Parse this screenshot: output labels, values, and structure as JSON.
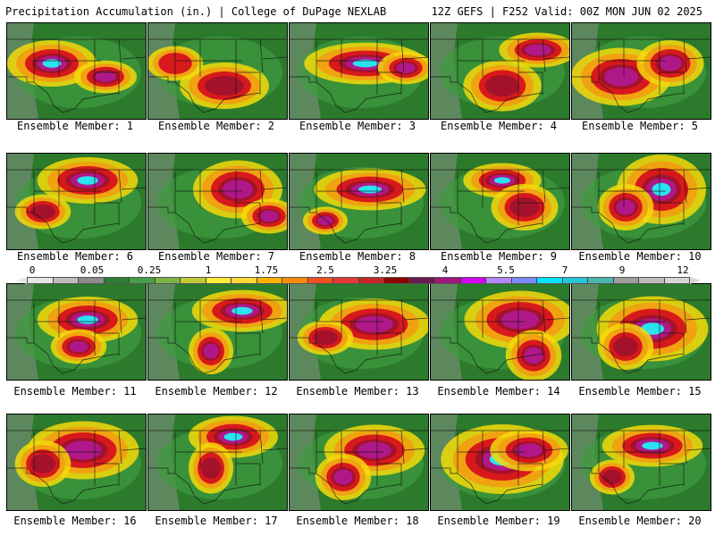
{
  "header": {
    "title": "Precipitation Accumulation (in.) | College of DuPage NEXLAB",
    "run_info": "12Z GEFS | F252 Valid: 00Z MON JUN 02 2025"
  },
  "colorbar": {
    "labels": [
      "0",
      "0.05",
      "0.25",
      "1",
      "1.75",
      "2.5",
      "3.25",
      "4",
      "5.5",
      "7",
      "9",
      "12"
    ],
    "colors": [
      "#e6e6e6",
      "#bdbdbd",
      "#8c8c8c",
      "#2e7d32",
      "#43a047",
      "#7cb342",
      "#c0ca33",
      "#ffeb3b",
      "#fdd835",
      "#ffb300",
      "#fb8c00",
      "#f4511e",
      "#e53935",
      "#c62828",
      "#8e0000",
      "#6a1b4d",
      "#a0157a",
      "#d500f9",
      "#b388ff",
      "#7c8cff",
      "#00e5ff",
      "#26c6da",
      "#4db6ac",
      "#9e9e9e",
      "#bdbdbd",
      "#d6d6d6"
    ]
  },
  "legend_colors": {
    "background": "#2c7a2c",
    "light": "#3f9b3f",
    "yellow": "#f5d90a",
    "orange": "#f39c12",
    "red": "#d7191c",
    "magenta": "#b0188a",
    "cyan": "#29e3f0",
    "dry": "#9a9a9a"
  },
  "members": [
    {
      "label": "Ensemble Member: 1",
      "cores": [
        [
          50,
          45,
          40,
          20,
          3
        ],
        [
          110,
          60,
          28,
          14,
          2
        ]
      ]
    },
    {
      "label": "Ensemble Member: 2",
      "cores": [
        [
          85,
          70,
          40,
          20,
          1
        ],
        [
          30,
          45,
          25,
          15,
          0
        ]
      ]
    },
    {
      "label": "Ensemble Member: 3",
      "cores": [
        [
          85,
          45,
          55,
          18,
          3
        ],
        [
          130,
          50,
          25,
          14,
          2
        ]
      ]
    },
    {
      "label": "Ensemble Member: 4",
      "cores": [
        [
          120,
          30,
          35,
          15,
          2
        ],
        [
          80,
          70,
          35,
          22,
          1
        ]
      ]
    },
    {
      "label": "Ensemble Member: 5",
      "cores": [
        [
          55,
          60,
          45,
          25,
          2
        ],
        [
          110,
          45,
          30,
          20,
          2
        ]
      ]
    },
    {
      "label": "Ensemble Member: 6",
      "cores": [
        [
          90,
          30,
          45,
          20,
          3
        ],
        [
          40,
          65,
          25,
          15,
          1
        ]
      ]
    },
    {
      "label": "Ensemble Member: 7",
      "cores": [
        [
          100,
          40,
          40,
          25,
          2
        ],
        [
          135,
          70,
          25,
          15,
          2
        ]
      ]
    },
    {
      "label": "Ensemble Member: 8",
      "cores": [
        [
          90,
          40,
          50,
          18,
          3
        ],
        [
          40,
          75,
          20,
          12,
          2
        ]
      ]
    },
    {
      "label": "Ensemble Member: 9",
      "cores": [
        [
          80,
          30,
          35,
          15,
          3
        ],
        [
          105,
          60,
          30,
          20,
          1
        ]
      ]
    },
    {
      "label": "Ensemble Member: 10",
      "cores": [
        [
          100,
          40,
          40,
          30,
          3
        ],
        [
          60,
          60,
          25,
          20,
          2
        ]
      ]
    },
    {
      "label": "Ensemble Member: 11",
      "cores": [
        [
          90,
          40,
          45,
          20,
          3
        ],
        [
          80,
          70,
          25,
          15,
          2
        ]
      ]
    },
    {
      "label": "Ensemble Member: 12",
      "cores": [
        [
          105,
          30,
          45,
          18,
          3
        ],
        [
          70,
          75,
          20,
          20,
          2
        ]
      ]
    },
    {
      "label": "Ensemble Member: 13",
      "cores": [
        [
          95,
          45,
          50,
          22,
          2
        ],
        [
          40,
          60,
          25,
          15,
          1
        ]
      ]
    },
    {
      "label": "Ensemble Member: 14",
      "cores": [
        [
          100,
          40,
          50,
          25,
          2
        ],
        [
          115,
          80,
          25,
          22,
          2
        ]
      ]
    },
    {
      "label": "Ensemble Member: 15",
      "cores": [
        [
          90,
          50,
          50,
          28,
          3
        ],
        [
          60,
          70,
          25,
          20,
          1
        ]
      ]
    },
    {
      "label": "Ensemble Member: 16",
      "cores": [
        [
          85,
          40,
          50,
          25,
          2
        ],
        [
          40,
          55,
          25,
          20,
          1
        ]
      ]
    },
    {
      "label": "Ensemble Member: 17",
      "cores": [
        [
          95,
          25,
          40,
          18,
          3
        ],
        [
          70,
          60,
          20,
          22,
          1
        ]
      ]
    },
    {
      "label": "Ensemble Member: 18",
      "cores": [
        [
          95,
          40,
          45,
          22,
          2
        ],
        [
          60,
          70,
          25,
          20,
          2
        ]
      ]
    },
    {
      "label": "Ensemble Member: 19",
      "cores": [
        [
          80,
          50,
          55,
          30,
          3
        ],
        [
          110,
          40,
          35,
          18,
          2
        ]
      ]
    },
    {
      "label": "Ensemble Member: 20",
      "cores": [
        [
          90,
          35,
          45,
          18,
          3
        ],
        [
          45,
          70,
          20,
          15,
          1
        ]
      ]
    }
  ]
}
